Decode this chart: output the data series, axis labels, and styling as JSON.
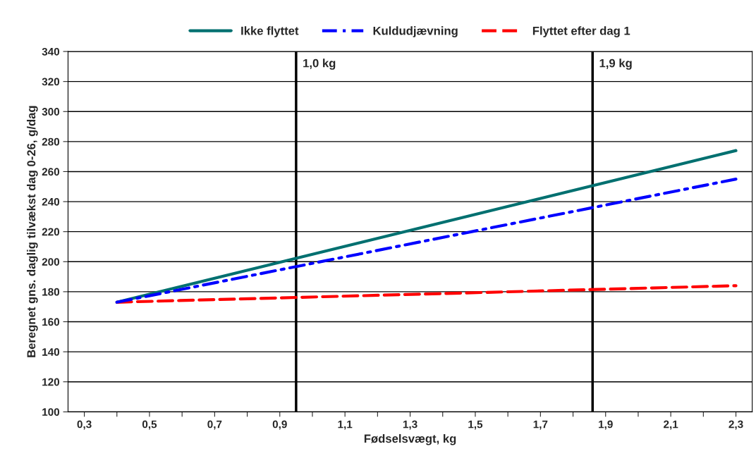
{
  "chart_data": {
    "type": "line",
    "xlabel": "Fødselsvægt, kg",
    "ylabel": "Beregnet gns. daglig tilvækst dag 0-26, g/dag",
    "series": [
      {
        "name": "Ikke flyttet",
        "color": "#007070",
        "line_style": "solid",
        "values": [
          173,
          274
        ]
      },
      {
        "name": "Kuldudjævning",
        "color": "#0000ff",
        "line_style": "dashdot",
        "values": [
          173,
          255
        ]
      },
      {
        "name": "Flyttet efter dag 1",
        "color": "#ff0000",
        "line_style": "dashed",
        "values": [
          173,
          184
        ]
      }
    ],
    "x": [
      0.4,
      2.3
    ],
    "xlim": [
      0.25,
      2.35
    ],
    "xticks": [
      {
        "value": 0.3,
        "label": "0,3"
      },
      {
        "value": 0.4,
        "label": null
      },
      {
        "value": 0.5,
        "label": "0,5"
      },
      {
        "value": 0.6,
        "label": null
      },
      {
        "value": 0.7,
        "label": "0,7"
      },
      {
        "value": 0.8,
        "label": null
      },
      {
        "value": 0.9,
        "label": "0,9"
      },
      {
        "value": 1.0,
        "label": null
      },
      {
        "value": 1.1,
        "label": "1,1"
      },
      {
        "value": 1.2,
        "label": null
      },
      {
        "value": 1.3,
        "label": "1,3"
      },
      {
        "value": 1.4,
        "label": null
      },
      {
        "value": 1.5,
        "label": "1,5"
      },
      {
        "value": 1.6,
        "label": null
      },
      {
        "value": 1.7,
        "label": "1,7"
      },
      {
        "value": 1.8,
        "label": null
      },
      {
        "value": 1.9,
        "label": "1,9"
      },
      {
        "value": 2.0,
        "label": null
      },
      {
        "value": 2.1,
        "label": "2,1"
      },
      {
        "value": 2.2,
        "label": null
      },
      {
        "value": 2.3,
        "label": "2,3"
      }
    ],
    "ylim": [
      100,
      340
    ],
    "yticks": [
      100,
      120,
      140,
      160,
      180,
      200,
      220,
      240,
      260,
      280,
      300,
      320,
      340
    ],
    "ref_lines": [
      {
        "axis": "x",
        "value": 0.95,
        "label": "1,0 kg",
        "color": "#000000"
      },
      {
        "axis": "x",
        "value": 1.86,
        "label": "1,9 kg",
        "color": "#000000"
      }
    ],
    "grid": "y",
    "legend": "top"
  }
}
